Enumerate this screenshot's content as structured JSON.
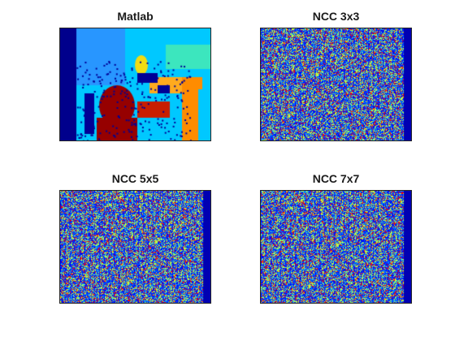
{
  "figure": {
    "colormap": "parula",
    "panels": [
      {
        "id": "matlab",
        "title": "Matlab",
        "kind": "disparity-map"
      },
      {
        "id": "ncc3",
        "title": "NCC 3x3",
        "kind": "noisy-map"
      },
      {
        "id": "ncc5",
        "title": "NCC 5x5",
        "kind": "noisy-map"
      },
      {
        "id": "ncc7",
        "title": "NCC 7x7",
        "kind": "noisy-map"
      }
    ]
  }
}
